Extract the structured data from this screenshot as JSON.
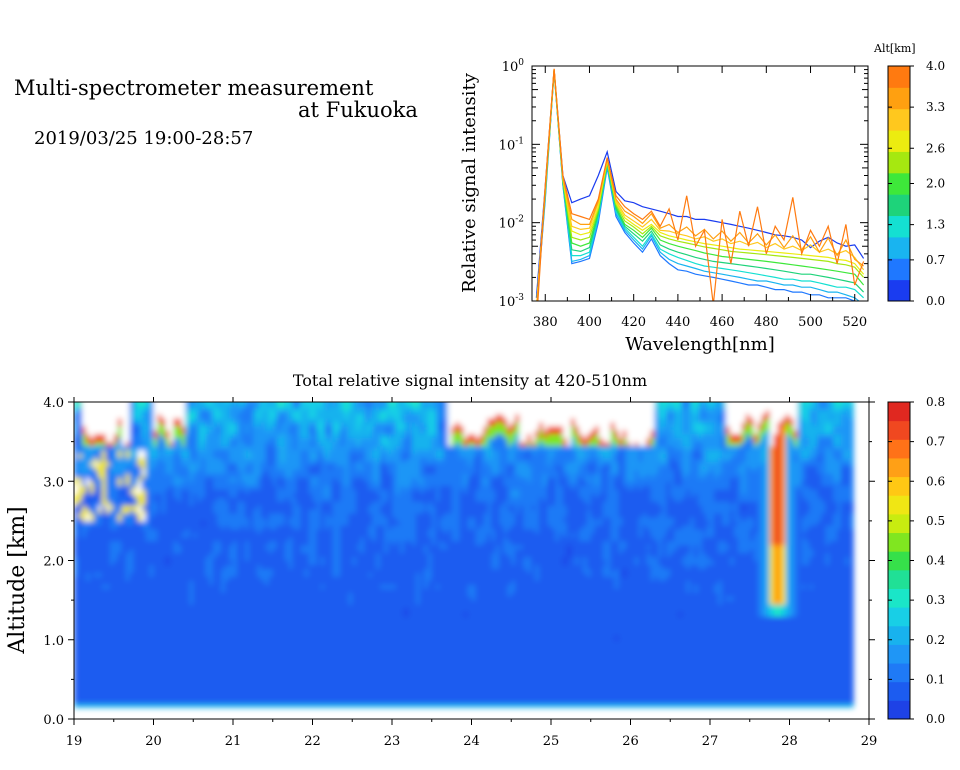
{
  "header": {
    "title_line1": "Multi-spectrometer measurement",
    "title_line2": "at Fukuoka",
    "subtitle": "2019/03/25 19:00-28:57"
  },
  "chart_data": [
    {
      "type": "line",
      "xlabel": "Wavelength[nm]",
      "ylabel": "Relative signal intensity",
      "xlim": [
        374,
        526
      ],
      "ylim": [
        0.001,
        1
      ],
      "yscale": "log",
      "x_ticks": [
        "380",
        "400",
        "420",
        "440",
        "460",
        "480",
        "500",
        "520"
      ],
      "y_ticks": [
        {
          "base": "10",
          "exp": "-3"
        },
        {
          "base": "10",
          "exp": "-2"
        },
        {
          "base": "10",
          "exp": "-1"
        },
        {
          "base": "10",
          "exp": "0"
        }
      ],
      "x": [
        376,
        380,
        384,
        388,
        392,
        396,
        400,
        404,
        408,
        412,
        416,
        420,
        424,
        428,
        432,
        436,
        440,
        444,
        448,
        452,
        456,
        460,
        464,
        468,
        472,
        476,
        480,
        484,
        488,
        492,
        496,
        500,
        504,
        508,
        512,
        516,
        520,
        524
      ],
      "colorbar": {
        "title": "Alt[km]",
        "tick_labels": [
          "0.0",
          "0.7",
          "1.3",
          "2.0",
          "2.6",
          "3.3",
          "4.0"
        ],
        "colors": [
          "#1a3cf0",
          "#1f78ff",
          "#19b4f0",
          "#14e0d2",
          "#1ed37a",
          "#3ee83a",
          "#a6e810",
          "#ecec10",
          "#ffc81e",
          "#ffa010",
          "#ff7a10"
        ]
      },
      "series": [
        {
          "color": "#1a3cf0",
          "values": [
            0.0011,
            0.03,
            0.9,
            0.04,
            0.018,
            0.02,
            0.022,
            0.04,
            0.08,
            0.025,
            0.019,
            0.018,
            0.016,
            0.015,
            0.014,
            0.013,
            0.012,
            0.012,
            0.011,
            0.011,
            0.0105,
            0.01,
            0.0095,
            0.009,
            0.0085,
            0.008,
            0.0075,
            0.007,
            0.0068,
            0.0065,
            0.006,
            0.0048,
            0.0058,
            0.0065,
            0.0055,
            0.005,
            0.0052,
            0.0035
          ]
        },
        {
          "color": "#1f78ff",
          "values": [
            0.0008,
            0.02,
            0.85,
            0.03,
            0.003,
            0.0032,
            0.0035,
            0.01,
            0.05,
            0.012,
            0.0075,
            0.0055,
            0.0042,
            0.0062,
            0.0038,
            0.003,
            0.0025,
            0.0024,
            0.0022,
            0.0021,
            0.002,
            0.0019,
            0.0018,
            0.0017,
            0.0016,
            0.0016,
            0.0015,
            0.0014,
            0.0014,
            0.0013,
            0.0013,
            0.0012,
            0.0012,
            0.0011,
            0.0011,
            0.0011,
            0.001,
            0.0009
          ]
        },
        {
          "color": "#19b4f0",
          "values": [
            0.0008,
            0.022,
            0.86,
            0.031,
            0.0032,
            0.0034,
            0.0038,
            0.011,
            0.052,
            0.013,
            0.008,
            0.006,
            0.0046,
            0.0068,
            0.0042,
            0.0034,
            0.003,
            0.0028,
            0.0026,
            0.0024,
            0.0023,
            0.0022,
            0.0021,
            0.002,
            0.0019,
            0.0018,
            0.0018,
            0.0017,
            0.0016,
            0.0016,
            0.0015,
            0.0015,
            0.0014,
            0.0013,
            0.0013,
            0.0012,
            0.0011,
            0.0009
          ]
        },
        {
          "color": "#14e0d2",
          "values": [
            0.0008,
            0.023,
            0.87,
            0.032,
            0.0038,
            0.0038,
            0.0042,
            0.012,
            0.055,
            0.014,
            0.0085,
            0.0065,
            0.005,
            0.0072,
            0.0046,
            0.004,
            0.0036,
            0.0033,
            0.003,
            0.0028,
            0.0027,
            0.0026,
            0.0025,
            0.0024,
            0.0023,
            0.0022,
            0.0021,
            0.002,
            0.0019,
            0.0019,
            0.0018,
            0.0018,
            0.0017,
            0.0016,
            0.0015,
            0.0015,
            0.0014,
            0.0011
          ]
        },
        {
          "color": "#1ed37a",
          "values": [
            0.0008,
            0.024,
            0.88,
            0.033,
            0.0045,
            0.0043,
            0.0048,
            0.013,
            0.057,
            0.015,
            0.009,
            0.0072,
            0.0058,
            0.0078,
            0.0052,
            0.0046,
            0.0042,
            0.0039,
            0.0036,
            0.0034,
            0.0032,
            0.0031,
            0.003,
            0.0029,
            0.0028,
            0.0027,
            0.0026,
            0.0025,
            0.0024,
            0.0023,
            0.0022,
            0.0022,
            0.0021,
            0.002,
            0.0019,
            0.0018,
            0.0017,
            0.0013
          ]
        },
        {
          "color": "#3ee83a",
          "values": [
            0.0008,
            0.025,
            0.88,
            0.034,
            0.0055,
            0.005,
            0.0055,
            0.014,
            0.058,
            0.016,
            0.0095,
            0.008,
            0.0065,
            0.0085,
            0.006,
            0.0054,
            0.005,
            0.0047,
            0.0044,
            0.0041,
            0.0039,
            0.0037,
            0.0036,
            0.0035,
            0.0034,
            0.0033,
            0.0032,
            0.0031,
            0.003,
            0.0029,
            0.0028,
            0.0027,
            0.0026,
            0.0025,
            0.0024,
            0.0023,
            0.0022,
            0.0016
          ]
        },
        {
          "color": "#a6e810",
          "values": [
            0.0008,
            0.026,
            0.89,
            0.035,
            0.0065,
            0.006,
            0.0065,
            0.015,
            0.06,
            0.017,
            0.0105,
            0.0088,
            0.0072,
            0.009,
            0.0068,
            0.0062,
            0.0058,
            0.0055,
            0.0052,
            0.0049,
            0.0047,
            0.0045,
            0.0043,
            0.0042,
            0.0041,
            0.004,
            0.0039,
            0.0038,
            0.0037,
            0.0036,
            0.0035,
            0.0034,
            0.0033,
            0.0032,
            0.003,
            0.0029,
            0.0027,
            0.002
          ]
        },
        {
          "color": "#ecec10",
          "values": [
            0.0008,
            0.027,
            0.9,
            0.036,
            0.0078,
            0.007,
            0.0075,
            0.016,
            0.062,
            0.018,
            0.0115,
            0.0095,
            0.008,
            0.0095,
            0.0075,
            0.0068,
            0.0064,
            0.006,
            0.0057,
            0.0054,
            0.0052,
            0.005,
            0.0048,
            0.0046,
            0.0045,
            0.0044,
            0.0043,
            0.0042,
            0.0041,
            0.004,
            0.0039,
            0.0038,
            0.0037,
            0.0036,
            0.0034,
            0.0033,
            0.003,
            0.0022
          ]
        },
        {
          "color": "#ffc81e",
          "values": [
            0.0008,
            0.028,
            0.9,
            0.037,
            0.009,
            0.0082,
            0.0085,
            0.018,
            0.064,
            0.019,
            0.0125,
            0.0105,
            0.0088,
            0.011,
            0.008,
            0.0078,
            0.0072,
            0.0068,
            0.0062,
            0.0066,
            0.0058,
            0.0062,
            0.0054,
            0.0058,
            0.0052,
            0.0056,
            0.0048,
            0.0054,
            0.0046,
            0.005,
            0.0044,
            0.0052,
            0.0042,
            0.0046,
            0.004,
            0.0044,
            0.0036,
            0.0025
          ]
        },
        {
          "color": "#ffa010",
          "values": [
            0.0007,
            0.029,
            0.91,
            0.038,
            0.011,
            0.0095,
            0.0095,
            0.019,
            0.066,
            0.02,
            0.014,
            0.012,
            0.0098,
            0.013,
            0.0085,
            0.0095,
            0.0075,
            0.0088,
            0.0068,
            0.0082,
            0.0062,
            0.0078,
            0.0058,
            0.0075,
            0.0055,
            0.0072,
            0.0052,
            0.007,
            0.0048,
            0.0068,
            0.0045,
            0.0066,
            0.0042,
            0.0064,
            0.0038,
            0.006,
            0.0034,
            0.0028
          ]
        },
        {
          "color": "#ff7a10",
          "values": [
            0.0005,
            0.03,
            0.92,
            0.04,
            0.013,
            0.012,
            0.011,
            0.02,
            0.068,
            0.022,
            0.016,
            0.013,
            0.011,
            0.014,
            0.009,
            0.015,
            0.006,
            0.022,
            0.005,
            0.008,
            0.0009,
            0.011,
            0.003,
            0.014,
            0.005,
            0.016,
            0.004,
            0.009,
            0.006,
            0.021,
            0.004,
            0.008,
            0.005,
            0.009,
            0.003,
            0.0095,
            0.0016,
            0.0032
          ]
        }
      ]
    },
    {
      "type": "heatmap",
      "title": "Total relative signal intensity at 420-510nm",
      "ylabel": "Altitude [km]",
      "xlim": [
        19,
        29
      ],
      "ylim": [
        0,
        4
      ],
      "x_ticks": [
        "19",
        "20",
        "21",
        "22",
        "23",
        "24",
        "25",
        "26",
        "27",
        "28",
        "29"
      ],
      "y_ticks": [
        "0.0",
        "1.0",
        "2.0",
        "3.0",
        "4.0"
      ],
      "data_x_range": [
        19,
        28.8
      ],
      "colorbar": {
        "range": [
          0,
          0.8
        ],
        "tick_labels": [
          "0.0",
          "0.1",
          "0.2",
          "0.3",
          "0.4",
          "0.5",
          "0.6",
          "0.7",
          "0.8"
        ],
        "colors": [
          "#1e42e6",
          "#1c5cf0",
          "#1f7af6",
          "#1f96f6",
          "#18b2ee",
          "#18cfe6",
          "#1ae6c8",
          "#20e096",
          "#36e04a",
          "#80e620",
          "#c8ec10",
          "#f0e614",
          "#ffc814",
          "#ffa016",
          "#ff7218",
          "#f04820",
          "#e02820"
        ]
      },
      "features": [
        {
          "label": "white (no data) patches near 4 km",
          "x_ranges": [
            [
              19.1,
              19.7
            ],
            [
              20.0,
              20.4
            ],
            [
              23.7,
              26.3
            ],
            [
              27.2,
              28.1
            ]
          ]
        },
        {
          "label": "high intensity column",
          "x": 27.85,
          "alt_min": 1.5,
          "value_max": 0.8
        }
      ]
    }
  ]
}
